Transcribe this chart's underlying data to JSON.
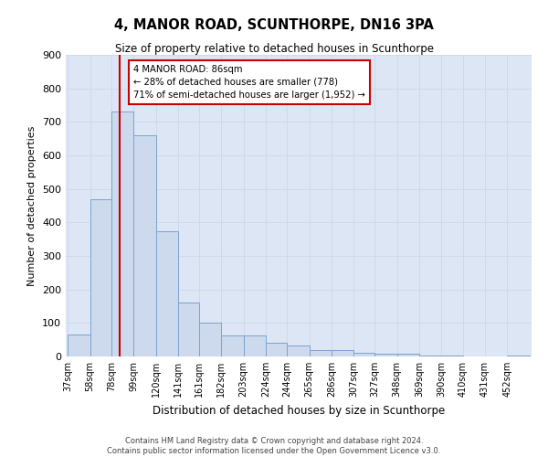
{
  "title": "4, MANOR ROAD, SCUNTHORPE, DN16 3PA",
  "subtitle": "Size of property relative to detached houses in Scunthorpe",
  "xlabel": "Distribution of detached houses by size in Scunthorpe",
  "ylabel": "Number of detached properties",
  "footer_line1": "Contains HM Land Registry data © Crown copyright and database right 2024.",
  "footer_line2": "Contains public sector information licensed under the Open Government Licence v3.0.",
  "bar_color": "#cdd9ed",
  "bar_edge_color": "#7ba3cf",
  "red_line_x": 86,
  "annotation_text": "4 MANOR ROAD: 86sqm\n← 28% of detached houses are smaller (778)\n71% of semi-detached houses are larger (1,952) →",
  "annotation_box_color": "#ffffff",
  "annotation_box_edge": "#cc0000",
  "categories": [
    "37sqm",
    "58sqm",
    "78sqm",
    "99sqm",
    "120sqm",
    "141sqm",
    "161sqm",
    "182sqm",
    "203sqm",
    "224sqm",
    "244sqm",
    "265sqm",
    "286sqm",
    "307sqm",
    "327sqm",
    "348sqm",
    "369sqm",
    "390sqm",
    "410sqm",
    "431sqm",
    "452sqm"
  ],
  "bin_edges": [
    37,
    58,
    78,
    99,
    120,
    141,
    161,
    182,
    203,
    224,
    244,
    265,
    286,
    307,
    327,
    348,
    369,
    390,
    410,
    431,
    452,
    473
  ],
  "values": [
    65,
    470,
    730,
    660,
    375,
    160,
    100,
    62,
    62,
    42,
    32,
    18,
    18,
    12,
    8,
    8,
    4,
    4,
    0,
    0,
    4
  ],
  "ylim": [
    0,
    900
  ],
  "yticks": [
    0,
    100,
    200,
    300,
    400,
    500,
    600,
    700,
    800,
    900
  ],
  "grid_color": "#c8d4e8",
  "background_color": "#dce6f5",
  "figsize": [
    6.0,
    5.0
  ],
  "dpi": 100
}
